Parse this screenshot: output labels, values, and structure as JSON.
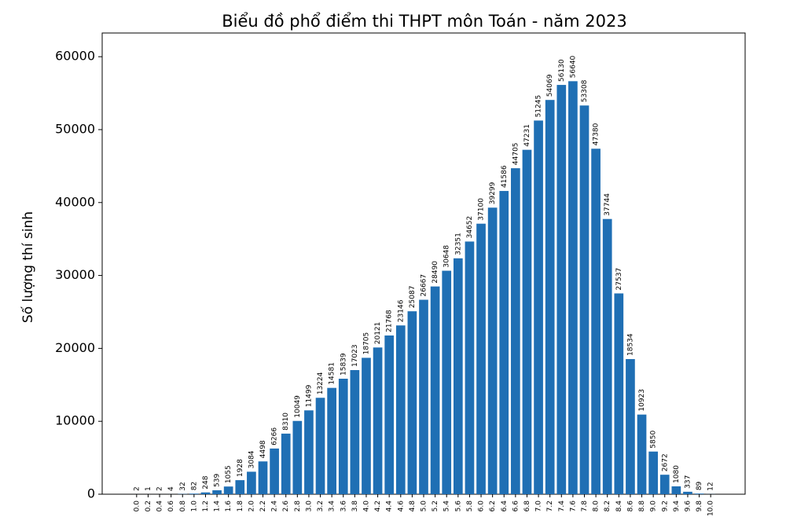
{
  "chart_data": {
    "type": "bar",
    "title": "Biểu đồ phổ điểm thi THPT môn Toán - năm 2023",
    "y_label": "Số lượng thí sinh",
    "categories": [
      "0.0",
      "0.2",
      "0.4",
      "0.6",
      "0.8",
      "1.0",
      "1.2",
      "1.4",
      "1.6",
      "1.8",
      "2.0",
      "2.2",
      "2.4",
      "2.6",
      "2.8",
      "3.0",
      "3.2",
      "3.4",
      "3.6",
      "3.8",
      "4.0",
      "4.2",
      "4.4",
      "4.6",
      "4.8",
      "5.0",
      "5.2",
      "5.4",
      "5.6",
      "5.8",
      "6.0",
      "6.2",
      "6.4",
      "6.6",
      "6.8",
      "7.0",
      "7.2",
      "7.4",
      "7.6",
      "7.8",
      "8.0",
      "8.2",
      "8.4",
      "8.6",
      "8.8",
      "9.0",
      "9.2",
      "9.4",
      "9.6",
      "9.8",
      "10.0"
    ],
    "values": [
      2,
      1,
      2,
      4,
      32,
      82,
      248,
      539,
      1055,
      1928,
      3084,
      4498,
      6266,
      8310,
      10049,
      11499,
      13224,
      14581,
      15839,
      17023,
      18705,
      20121,
      21768,
      23146,
      25087,
      26667,
      28490,
      30648,
      32351,
      34652,
      37100,
      39299,
      41586,
      44705,
      47231,
      51245,
      54069,
      56130,
      56640,
      53308,
      47380,
      37744,
      27537,
      18534,
      10923,
      5850,
      2672,
      1080,
      337,
      89,
      12
    ],
    "color": "#1f6fb4",
    "ylim": [
      0,
      63250
    ],
    "yticks": [
      0,
      10000,
      20000,
      30000,
      40000,
      50000,
      60000
    ],
    "grid": false
  }
}
